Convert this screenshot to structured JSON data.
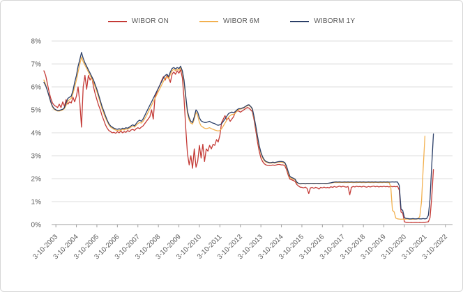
{
  "chart_data": {
    "type": "line",
    "title": "",
    "xlabel": "",
    "ylabel": "",
    "grid": "horizontal",
    "legend_position": "top",
    "ylim": [
      0,
      8
    ],
    "y_tick_step": 1,
    "y_tick_labels": [
      "0%",
      "1%",
      "2%",
      "3%",
      "4%",
      "5%",
      "6%",
      "7%",
      "8%"
    ],
    "x_tick_labels": [
      "3-10-2003",
      "3-10-2004",
      "3-10-2005",
      "3-10-2006",
      "3-10-2007",
      "3-10-2008",
      "3-10-2009",
      "3-10-2010",
      "3-10-2011",
      "3-10-2012",
      "3-10-2013",
      "3-10-2014",
      "3-10-2015",
      "3-10-2016",
      "3-10-2017",
      "3-10-2018",
      "3-10-2019",
      "3-10-2020",
      "3-10-2021",
      "3-10-2022"
    ],
    "x_unit": "monthly samples; first x tick falls on sample index 7, one tick every 12 samples",
    "first_tick_sample_index": 7,
    "samples_per_tick": 12,
    "colors": {
      "wibor_on": "#c43a36",
      "wibor_6m": "#f2b04f",
      "wiborm_1y": "#2b3f68",
      "grid": "#dcdcdc",
      "axis": "#9f9f9f",
      "text": "#595959"
    },
    "series": [
      {
        "name": "WIBOR ON",
        "color": "#c43a36",
        "values": [
          6.7,
          6.5,
          6.15,
          5.8,
          5.5,
          5.3,
          5.2,
          5.15,
          5.1,
          5.25,
          5.1,
          5.35,
          5.15,
          5.45,
          5.25,
          5.35,
          5.3,
          5.55,
          5.35,
          5.6,
          6.0,
          5.3,
          4.25,
          6.0,
          6.5,
          5.9,
          6.5,
          6.3,
          6.45,
          6.0,
          5.7,
          5.45,
          5.2,
          5.0,
          4.75,
          4.55,
          4.35,
          4.2,
          4.1,
          4.05,
          4.0,
          4.02,
          3.98,
          4.05,
          4.0,
          4.08,
          4.0,
          4.05,
          4.02,
          4.1,
          4.05,
          4.12,
          4.15,
          4.1,
          4.18,
          4.22,
          4.18,
          4.25,
          4.3,
          4.4,
          4.5,
          4.6,
          4.7,
          5.0,
          4.6,
          5.55,
          5.75,
          5.95,
          6.1,
          6.3,
          6.45,
          6.3,
          6.5,
          6.4,
          6.2,
          6.55,
          6.65,
          6.55,
          6.7,
          6.6,
          6.75,
          6.4,
          5.5,
          4.2,
          3.1,
          2.6,
          3.0,
          2.45,
          3.3,
          2.5,
          2.75,
          3.45,
          2.9,
          3.5,
          2.75,
          3.3,
          3.2,
          3.45,
          3.3,
          3.5,
          3.45,
          3.7,
          3.6,
          3.9,
          4.45,
          4.6,
          4.75,
          4.55,
          4.65,
          4.5,
          4.6,
          4.7,
          4.9,
          4.95,
          4.95,
          4.9,
          4.95,
          5.0,
          5.05,
          5.1,
          5.08,
          5.0,
          4.92,
          4.55,
          4.1,
          3.6,
          3.2,
          2.9,
          2.75,
          2.65,
          2.6,
          2.58,
          2.57,
          2.58,
          2.6,
          2.58,
          2.6,
          2.62,
          2.62,
          2.6,
          2.6,
          2.56,
          2.4,
          2.15,
          1.98,
          1.95,
          1.92,
          1.88,
          1.75,
          1.68,
          1.63,
          1.62,
          1.6,
          1.63,
          1.58,
          1.35,
          1.6,
          1.62,
          1.58,
          1.62,
          1.6,
          1.55,
          1.62,
          1.6,
          1.63,
          1.6,
          1.62,
          1.6,
          1.65,
          1.62,
          1.66,
          1.63,
          1.65,
          1.68,
          1.64,
          1.67,
          1.65,
          1.63,
          1.66,
          1.3,
          1.62,
          1.66,
          1.64,
          1.67,
          1.65,
          1.66,
          1.64,
          1.67,
          1.65,
          1.63,
          1.66,
          1.64,
          1.66,
          1.68,
          1.65,
          1.67,
          1.64,
          1.66,
          1.65,
          1.67,
          1.65,
          1.66,
          1.64,
          1.67,
          1.65,
          1.66,
          1.65,
          1.67,
          1.5,
          0.55,
          0.5,
          0.12,
          0.1,
          0.1,
          0.09,
          0.1,
          0.09,
          0.1,
          0.1,
          0.09,
          0.1,
          0.09,
          0.1,
          0.1,
          0.11,
          0.12,
          0.3,
          1.2,
          2.4
        ]
      },
      {
        "name": "WIBOR 6M",
        "color": "#f2b04f",
        "values": [
          6.3,
          6.1,
          5.85,
          5.6,
          5.33,
          5.12,
          5.02,
          4.98,
          4.95,
          4.95,
          4.97,
          5.0,
          5.05,
          5.2,
          5.38,
          5.45,
          5.5,
          5.72,
          6.0,
          6.3,
          6.65,
          7.0,
          7.3,
          7.1,
          6.95,
          6.8,
          6.65,
          6.5,
          6.35,
          6.2,
          6.0,
          5.8,
          5.55,
          5.3,
          5.05,
          4.85,
          4.65,
          4.5,
          4.35,
          4.25,
          4.2,
          4.15,
          4.12,
          4.1,
          4.12,
          4.1,
          4.15,
          4.12,
          4.17,
          4.15,
          4.2,
          4.25,
          4.28,
          4.25,
          4.33,
          4.4,
          4.45,
          4.42,
          4.5,
          4.62,
          4.75,
          4.9,
          5.05,
          5.2,
          5.35,
          5.5,
          5.65,
          5.8,
          5.95,
          6.1,
          6.25,
          6.38,
          6.45,
          6.35,
          6.55,
          6.7,
          6.78,
          6.7,
          6.78,
          6.72,
          6.85,
          6.65,
          6.2,
          5.5,
          4.85,
          4.55,
          4.42,
          4.38,
          4.6,
          4.9,
          4.75,
          4.45,
          4.3,
          4.25,
          4.2,
          4.18,
          4.2,
          4.22,
          4.18,
          4.15,
          4.12,
          4.1,
          4.08,
          4.1,
          4.18,
          4.3,
          4.42,
          4.55,
          4.68,
          4.75,
          4.8,
          4.8,
          4.85,
          4.95,
          5.02,
          5.03,
          5.06,
          5.08,
          5.13,
          5.18,
          5.2,
          5.13,
          5.02,
          4.65,
          4.25,
          3.8,
          3.4,
          3.1,
          2.9,
          2.78,
          2.72,
          2.7,
          2.68,
          2.68,
          2.7,
          2.68,
          2.7,
          2.72,
          2.72,
          2.72,
          2.7,
          2.67,
          2.5,
          2.25,
          2.05,
          2.0,
          1.98,
          1.95,
          1.82,
          1.79,
          1.77,
          1.78,
          1.79,
          1.77,
          1.79,
          1.78,
          1.79,
          1.79,
          1.78,
          1.79,
          1.79,
          1.78,
          1.79,
          1.79,
          1.79,
          1.78,
          1.79,
          1.8,
          1.81,
          1.82,
          1.84,
          1.83,
          1.84,
          1.83,
          1.84,
          1.84,
          1.83,
          1.84,
          1.83,
          1.84,
          1.84,
          1.83,
          1.84,
          1.83,
          1.84,
          1.84,
          1.83,
          1.84,
          1.83,
          1.84,
          1.84,
          1.83,
          1.84,
          1.83,
          1.84,
          1.84,
          1.83,
          1.84,
          1.83,
          1.84,
          1.84,
          1.83,
          1.84,
          1.65,
          0.62,
          0.55,
          0.28,
          0.25,
          0.24,
          0.23,
          0.24,
          0.23,
          0.24,
          0.24,
          0.23,
          0.24,
          0.23,
          0.24,
          0.24,
          0.25,
          0.35,
          1.0,
          2.45,
          3.85
        ]
      },
      {
        "name": "WIBORM 1Y",
        "color": "#2b3f68",
        "values": [
          6.2,
          6.05,
          5.85,
          5.6,
          5.35,
          5.15,
          5.05,
          5.0,
          4.97,
          4.98,
          5.0,
          5.02,
          5.1,
          5.3,
          5.5,
          5.55,
          5.6,
          5.85,
          6.2,
          6.5,
          6.9,
          7.2,
          7.5,
          7.25,
          7.05,
          6.9,
          6.75,
          6.6,
          6.45,
          6.3,
          6.1,
          5.9,
          5.65,
          5.4,
          5.15,
          4.95,
          4.75,
          4.55,
          4.4,
          4.3,
          4.25,
          4.2,
          4.17,
          4.15,
          4.18,
          4.15,
          4.2,
          4.18,
          4.22,
          4.2,
          4.25,
          4.3,
          4.35,
          4.3,
          4.4,
          4.5,
          4.55,
          4.5,
          4.6,
          4.75,
          4.9,
          5.05,
          5.2,
          5.35,
          5.5,
          5.65,
          5.8,
          5.95,
          6.1,
          6.25,
          6.4,
          6.5,
          6.55,
          6.45,
          6.65,
          6.8,
          6.85,
          6.78,
          6.85,
          6.8,
          6.9,
          6.7,
          6.3,
          5.6,
          4.95,
          4.65,
          4.5,
          4.45,
          4.7,
          5.0,
          4.9,
          4.65,
          4.52,
          4.48,
          4.45,
          4.45,
          4.48,
          4.5,
          4.45,
          4.42,
          4.4,
          4.35,
          4.33,
          4.35,
          4.4,
          4.5,
          4.6,
          4.72,
          4.83,
          4.88,
          4.9,
          4.88,
          4.92,
          5.0,
          5.05,
          5.05,
          5.08,
          5.1,
          5.15,
          5.2,
          5.22,
          5.15,
          5.05,
          4.7,
          4.3,
          3.85,
          3.45,
          3.15,
          2.95,
          2.82,
          2.75,
          2.72,
          2.7,
          2.7,
          2.72,
          2.7,
          2.72,
          2.74,
          2.75,
          2.75,
          2.74,
          2.7,
          2.55,
          2.3,
          2.1,
          2.05,
          2.02,
          1.98,
          1.85,
          1.8,
          1.78,
          1.79,
          1.8,
          1.78,
          1.8,
          1.79,
          1.8,
          1.8,
          1.79,
          1.8,
          1.8,
          1.79,
          1.8,
          1.8,
          1.8,
          1.79,
          1.8,
          1.81,
          1.82,
          1.84,
          1.85,
          1.86,
          1.85,
          1.86,
          1.85,
          1.85,
          1.86,
          1.85,
          1.86,
          1.85,
          1.86,
          1.85,
          1.85,
          1.86,
          1.85,
          1.86,
          1.85,
          1.86,
          1.85,
          1.85,
          1.86,
          1.85,
          1.86,
          1.85,
          1.86,
          1.85,
          1.85,
          1.86,
          1.85,
          1.86,
          1.85,
          1.86,
          1.85,
          1.85,
          1.86,
          1.85,
          1.86,
          1.85,
          1.7,
          0.68,
          0.62,
          0.3,
          0.27,
          0.26,
          0.25,
          0.25,
          0.26,
          0.25,
          0.25,
          0.26,
          0.25,
          0.25,
          0.26,
          0.25,
          0.26,
          0.4,
          1.1,
          2.6,
          3.95
        ]
      }
    ]
  }
}
